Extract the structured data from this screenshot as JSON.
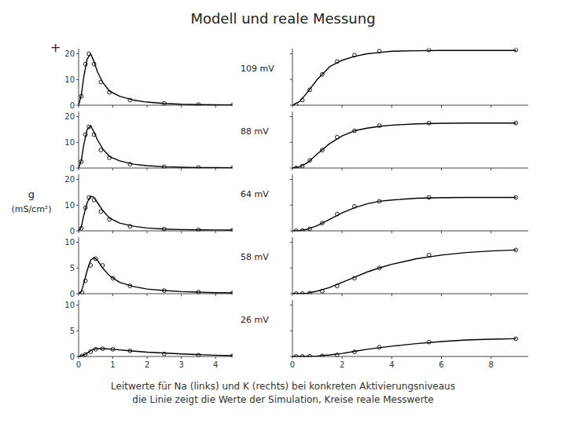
{
  "chart_data": [
    {
      "type": "line",
      "title": "Modell und reale Messung",
      "subtitle": [
        "Leitwerte für Na (links) und K (rechts) bei konkreten Aktivierungsniveaus",
        "die Linie zeigt die Werte der Simulation, Kreise reale Messwerte"
      ],
      "ylabel": [
        "g",
        "(mS/cm²)"
      ],
      "annotations": [
        "+"
      ],
      "panel_label": "109 mV",
      "xlim": [
        0,
        4.5
      ],
      "xticks": [
        0,
        1,
        2,
        3,
        4
      ],
      "ylim": [
        0,
        22
      ],
      "yticks": [
        0,
        10,
        20
      ],
      "tick_labels": "y",
      "series": [
        {
          "type": "line",
          "color": "#000000",
          "x": [
            0,
            0.08,
            0.15,
            0.25,
            0.35,
            0.45,
            0.55,
            0.7,
            0.9,
            1.2,
            1.6,
            2.0,
            2.5,
            3.0,
            3.5,
            4.0,
            4.5
          ],
          "values": [
            0,
            4,
            11,
            18,
            20,
            17,
            13,
            9,
            5.5,
            3.5,
            2,
            1.2,
            0.7,
            0.4,
            0.25,
            0.15,
            0.1
          ]
        },
        {
          "type": "scatter",
          "marker": "circle",
          "color": "#000000",
          "x": [
            0.08,
            0.2,
            0.3,
            0.45,
            0.65,
            0.9,
            1.5,
            2.5,
            3.5,
            4.5
          ],
          "values": [
            3.5,
            16,
            20,
            16,
            9,
            5,
            2,
            0.7,
            0.25,
            0.1
          ]
        }
      ]
    },
    {
      "type": "line",
      "xlim": [
        0,
        9.5
      ],
      "xticks": [
        0,
        2,
        4,
        6,
        8
      ],
      "ylim": [
        0,
        22
      ],
      "yticks": [
        0,
        10,
        20
      ],
      "tick_labels": false,
      "series": [
        {
          "type": "line",
          "color": "#000000",
          "x": [
            0,
            0.3,
            0.6,
            1.0,
            1.5,
            2.0,
            2.5,
            3.0,
            3.5,
            4.0,
            5.0,
            6.0,
            7.0,
            8.0,
            9.0
          ],
          "values": [
            0,
            1.5,
            5,
            10,
            15,
            17.5,
            19,
            20,
            20.5,
            21,
            21.2,
            21.3,
            21.3,
            21.3,
            21.3
          ]
        },
        {
          "type": "scatter",
          "marker": "circle",
          "color": "#000000",
          "x": [
            0.15,
            0.4,
            0.7,
            1.2,
            1.8,
            2.5,
            3.5,
            5.5,
            9.0
          ],
          "values": [
            0.05,
            2,
            6,
            12,
            17,
            19.5,
            21,
            21.5,
            21.5
          ]
        }
      ]
    },
    {
      "type": "line",
      "panel_label": "88 mV",
      "xlim": [
        0,
        4.5
      ],
      "xticks": [
        0,
        1,
        2,
        3,
        4
      ],
      "ylim": [
        0,
        22
      ],
      "yticks": [
        0,
        10,
        20
      ],
      "tick_labels": "y",
      "series": [
        {
          "type": "line",
          "color": "#000000",
          "x": [
            0,
            0.08,
            0.15,
            0.25,
            0.35,
            0.45,
            0.55,
            0.7,
            0.9,
            1.2,
            1.6,
            2.0,
            2.5,
            3.0,
            3.5,
            4.0,
            4.5
          ],
          "values": [
            0,
            3,
            9,
            15,
            16.5,
            14,
            11,
            7.5,
            4.5,
            2.8,
            1.5,
            0.9,
            0.5,
            0.3,
            0.2,
            0.15,
            0.1
          ]
        },
        {
          "type": "scatter",
          "marker": "circle",
          "color": "#000000",
          "x": [
            0.08,
            0.2,
            0.3,
            0.45,
            0.65,
            0.9,
            1.5,
            2.5,
            3.5,
            4.5
          ],
          "values": [
            2.5,
            13,
            16,
            13,
            7,
            4,
            1.5,
            0.5,
            0.2,
            0.1
          ]
        }
      ]
    },
    {
      "type": "line",
      "xlim": [
        0,
        9.5
      ],
      "xticks": [
        0,
        2,
        4,
        6,
        8
      ],
      "ylim": [
        0,
        22
      ],
      "yticks": [
        0,
        10,
        20
      ],
      "tick_labels": false,
      "series": [
        {
          "type": "line",
          "color": "#000000",
          "x": [
            0,
            0.3,
            0.6,
            1.0,
            1.5,
            2.0,
            2.5,
            3.0,
            3.5,
            4.0,
            5.0,
            6.0,
            7.0,
            8.0,
            9.0
          ],
          "values": [
            0,
            0.5,
            2,
            5.5,
            9.5,
            12.5,
            14.5,
            15.5,
            16.2,
            16.7,
            17.2,
            17.4,
            17.5,
            17.5,
            17.5
          ]
        },
        {
          "type": "scatter",
          "marker": "circle",
          "color": "#000000",
          "x": [
            0.15,
            0.4,
            0.7,
            1.2,
            1.8,
            2.5,
            3.5,
            5.5,
            9.0
          ],
          "values": [
            0.05,
            0.8,
            3,
            7,
            12,
            14.5,
            16.5,
            17.5,
            17.5
          ]
        }
      ]
    },
    {
      "type": "line",
      "panel_label": "64 mV",
      "xlim": [
        0,
        4.5
      ],
      "xticks": [
        0,
        1,
        2,
        3,
        4
      ],
      "ylim": [
        0,
        22
      ],
      "yticks": [
        0,
        10,
        20
      ],
      "tick_labels": "y",
      "series": [
        {
          "type": "line",
          "color": "#000000",
          "x": [
            0,
            0.08,
            0.15,
            0.25,
            0.35,
            0.45,
            0.55,
            0.7,
            0.9,
            1.2,
            1.6,
            2.0,
            2.5,
            3.0,
            3.5,
            4.0,
            4.5
          ],
          "values": [
            0,
            1.5,
            6,
            11,
            13.5,
            13,
            11,
            8,
            5,
            3,
            1.8,
            1.1,
            0.7,
            0.5,
            0.4,
            0.35,
            0.3
          ]
        },
        {
          "type": "scatter",
          "marker": "circle",
          "color": "#000000",
          "x": [
            0.08,
            0.2,
            0.3,
            0.45,
            0.65,
            0.9,
            1.5,
            2.5,
            3.5,
            4.5
          ],
          "values": [
            1,
            9,
            13,
            12,
            7.5,
            4.5,
            1.8,
            0.7,
            0.4,
            0.3
          ]
        }
      ]
    },
    {
      "type": "line",
      "xlim": [
        0,
        9.5
      ],
      "xticks": [
        0,
        2,
        4,
        6,
        8
      ],
      "ylim": [
        0,
        22
      ],
      "yticks": [
        0,
        10,
        20
      ],
      "tick_labels": false,
      "series": [
        {
          "type": "line",
          "color": "#000000",
          "x": [
            0,
            0.3,
            0.6,
            1.0,
            1.5,
            2.0,
            2.5,
            3.0,
            3.5,
            4.0,
            5.0,
            6.0,
            7.0,
            8.0,
            9.0
          ],
          "values": [
            0,
            0.1,
            0.6,
            2,
            4.5,
            7,
            9,
            10.5,
            11.5,
            12,
            12.7,
            12.9,
            13,
            13,
            13
          ]
        },
        {
          "type": "scatter",
          "marker": "circle",
          "color": "#000000",
          "x": [
            0.15,
            0.4,
            0.7,
            1.2,
            1.8,
            2.5,
            3.5,
            5.5,
            9.0
          ],
          "values": [
            0.05,
            0.1,
            0.8,
            3,
            6.5,
            9.5,
            11.5,
            13,
            13
          ]
        }
      ]
    },
    {
      "type": "line",
      "panel_label": "58 mV",
      "xlim": [
        0,
        4.5
      ],
      "xticks": [
        0,
        1,
        2,
        3,
        4
      ],
      "ylim": [
        0,
        11
      ],
      "yticks": [
        0,
        5,
        10
      ],
      "tick_labels": "y",
      "series": [
        {
          "type": "line",
          "color": "#000000",
          "x": [
            0,
            0.08,
            0.15,
            0.25,
            0.35,
            0.45,
            0.55,
            0.7,
            0.9,
            1.2,
            1.6,
            2.0,
            2.5,
            3.0,
            3.5,
            4.0,
            4.5
          ],
          "values": [
            0,
            0.4,
            2,
            4.5,
            6.5,
            7,
            6.5,
            5,
            3.5,
            2.2,
            1.4,
            0.9,
            0.6,
            0.4,
            0.3,
            0.2,
            0.15
          ]
        },
        {
          "type": "scatter",
          "marker": "circle",
          "color": "#000000",
          "x": [
            0.1,
            0.2,
            0.35,
            0.5,
            0.7,
            1.0,
            1.5,
            2.5,
            3.5,
            4.5
          ],
          "values": [
            0.2,
            2.5,
            5.5,
            6.8,
            5.5,
            3,
            1.5,
            0.6,
            0.3,
            0.15
          ]
        }
      ]
    },
    {
      "type": "line",
      "xlim": [
        0,
        9.5
      ],
      "xticks": [
        0,
        2,
        4,
        6,
        8
      ],
      "ylim": [
        0,
        11
      ],
      "yticks": [
        0,
        5,
        10
      ],
      "tick_labels": false,
      "series": [
        {
          "type": "line",
          "color": "#000000",
          "x": [
            0,
            0.3,
            0.6,
            1.0,
            1.5,
            2.0,
            2.5,
            3.0,
            3.5,
            4.0,
            5.0,
            6.0,
            7.0,
            8.0,
            9.0
          ],
          "values": [
            0,
            0.02,
            0.1,
            0.5,
            1.2,
            2.2,
            3.2,
            4.2,
            5.0,
            5.7,
            6.8,
            7.5,
            8.0,
            8.3,
            8.5
          ]
        },
        {
          "type": "scatter",
          "marker": "circle",
          "color": "#000000",
          "x": [
            0.15,
            0.4,
            0.7,
            1.2,
            1.8,
            2.5,
            3.5,
            5.5,
            9.0
          ],
          "values": [
            0.02,
            0.02,
            0.1,
            0.5,
            1.5,
            3.0,
            5.0,
            7.5,
            8.5
          ]
        }
      ]
    },
    {
      "type": "line",
      "panel_label": "26 mV",
      "xlim": [
        0,
        4.5
      ],
      "xticks": [
        0,
        1,
        2,
        3,
        4
      ],
      "ylim": [
        0,
        11
      ],
      "yticks": [
        0,
        5,
        10
      ],
      "tick_labels": true,
      "series": [
        {
          "type": "line",
          "color": "#000000",
          "x": [
            0,
            0.1,
            0.2,
            0.3,
            0.4,
            0.5,
            0.6,
            0.8,
            1.0,
            1.5,
            2.0,
            3.0,
            4.0,
            4.5
          ],
          "values": [
            0,
            0.15,
            0.45,
            0.9,
            1.3,
            1.5,
            1.55,
            1.5,
            1.4,
            1.1,
            0.85,
            0.5,
            0.25,
            0.15
          ]
        },
        {
          "type": "scatter",
          "marker": "circle",
          "color": "#000000",
          "x": [
            0.1,
            0.2,
            0.35,
            0.5,
            0.7,
            1.0,
            1.5,
            2.5,
            3.5,
            4.5
          ],
          "values": [
            0.1,
            0.4,
            0.9,
            1.4,
            1.5,
            1.4,
            1.1,
            0.5,
            0.25,
            0.15
          ]
        }
      ]
    },
    {
      "type": "line",
      "xlim": [
        0,
        9.5
      ],
      "xticks": [
        0,
        2,
        4,
        6,
        8
      ],
      "ylim": [
        0,
        11
      ],
      "yticks": [
        0,
        5,
        10
      ],
      "tick_labels": "x",
      "series": [
        {
          "type": "line",
          "color": "#000000",
          "x": [
            0,
            0.3,
            0.6,
            1.0,
            1.5,
            2.0,
            2.5,
            3.0,
            3.5,
            4.0,
            5.0,
            6.0,
            7.0,
            8.0,
            9.0
          ],
          "values": [
            0,
            0.01,
            0.03,
            0.1,
            0.3,
            0.6,
            1.0,
            1.4,
            1.7,
            2.0,
            2.5,
            2.9,
            3.2,
            3.35,
            3.45
          ]
        },
        {
          "type": "scatter",
          "marker": "circle",
          "color": "#000000",
          "x": [
            0.15,
            0.4,
            0.7,
            1.2,
            1.8,
            2.5,
            3.5,
            5.5,
            9.0
          ],
          "values": [
            0.01,
            0.01,
            0.03,
            0.1,
            0.3,
            0.9,
            1.8,
            2.8,
            3.45
          ]
        }
      ]
    }
  ]
}
